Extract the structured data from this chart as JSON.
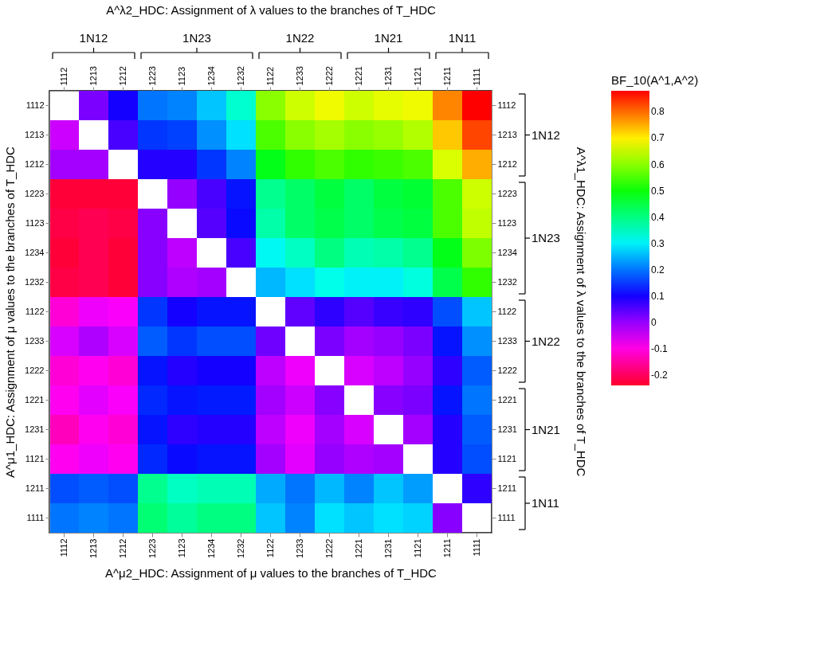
{
  "chart_data": {
    "type": "heatmap",
    "x2label": "A^λ2_HDC: Assignment of λ values to the branches of  T_HDC",
    "xlabel": "A^μ2_HDC: Assignment of μ values to the branches of  T_HDC",
    "ylabel": "A^μ1_HDC: Assignment of μ values to the branches of T_HDC",
    "clabel": "BF_10(A^1,A^2)",
    "categories": [
      "1112",
      "1213",
      "1212",
      "1223",
      "1123",
      "1234",
      "1232",
      "1122",
      "1233",
      "1222",
      "1221",
      "1231",
      "1121",
      "1211",
      "1111"
    ],
    "y_categories": [
      "1112",
      "1213",
      "1212",
      "1223",
      "1123",
      "1234",
      "1232",
      "1122",
      "1233",
      "1222",
      "1221",
      "1231",
      "1121",
      "1211",
      "1111"
    ],
    "y2_categories": [
      "1112",
      "1213",
      "1212",
      "1223",
      "1123",
      "1234",
      "1232",
      "1122",
      "1233",
      "1222",
      "1221",
      "1231",
      "1121",
      "1211",
      "1111"
    ],
    "cells": [
      [
        null,
        0.02,
        0.1,
        0.2,
        0.21,
        0.26,
        0.34,
        0.6,
        0.65,
        0.68,
        0.65,
        0.67,
        0.68,
        0.78,
        0.88
      ],
      [
        -0.04,
        null,
        0.06,
        0.15,
        0.16,
        0.22,
        0.28,
        0.55,
        0.6,
        0.62,
        0.6,
        0.61,
        0.63,
        0.73,
        0.83
      ],
      [
        -0.01,
        -0.01,
        null,
        0.09,
        0.09,
        0.15,
        0.21,
        0.48,
        0.53,
        0.55,
        0.53,
        0.54,
        0.55,
        0.66,
        0.75
      ],
      [
        -0.23,
        -0.23,
        -0.23,
        null,
        0.0,
        0.06,
        0.12,
        0.39,
        0.42,
        0.45,
        0.42,
        0.45,
        0.46,
        0.55,
        0.65
      ],
      [
        -0.22,
        -0.21,
        -0.22,
        0.01,
        null,
        0.05,
        0.11,
        0.37,
        0.42,
        0.44,
        0.42,
        0.44,
        0.45,
        0.55,
        0.64
      ],
      [
        -0.23,
        -0.21,
        -0.23,
        0.01,
        -0.03,
        null,
        0.06,
        0.31,
        0.35,
        0.4,
        0.36,
        0.37,
        0.39,
        0.48,
        0.59
      ],
      [
        -0.22,
        -0.21,
        -0.23,
        0.01,
        -0.02,
        -0.01,
        null,
        0.25,
        0.28,
        0.32,
        0.3,
        0.3,
        0.33,
        0.44,
        0.53
      ],
      [
        -0.11,
        -0.07,
        -0.08,
        0.15,
        0.1,
        0.12,
        0.12,
        null,
        0.04,
        0.08,
        0.05,
        0.07,
        0.08,
        0.17,
        0.26
      ],
      [
        -0.05,
        -0.02,
        -0.05,
        0.18,
        0.15,
        0.17,
        0.17,
        0.03,
        null,
        0.02,
        -0.01,
        0.0,
        0.02,
        0.12,
        0.22
      ],
      [
        -0.11,
        -0.09,
        -0.11,
        0.12,
        0.09,
        0.1,
        0.1,
        -0.03,
        -0.07,
        null,
        -0.05,
        -0.03,
        0.0,
        0.08,
        0.18
      ],
      [
        -0.09,
        -0.06,
        -0.08,
        0.14,
        0.12,
        0.13,
        0.13,
        -0.01,
        -0.04,
        0.01,
        null,
        0.01,
        0.02,
        0.12,
        0.2
      ],
      [
        -0.13,
        -0.09,
        -0.11,
        0.12,
        0.08,
        0.09,
        0.09,
        -0.03,
        -0.07,
        -0.01,
        -0.05,
        null,
        -0.01,
        0.09,
        0.18
      ],
      [
        -0.09,
        -0.07,
        -0.09,
        0.14,
        0.11,
        0.12,
        0.12,
        -0.01,
        -0.06,
        0.0,
        -0.02,
        -0.01,
        null,
        0.09,
        0.17
      ],
      [
        0.17,
        0.18,
        0.17,
        0.39,
        0.35,
        0.36,
        0.36,
        0.24,
        0.2,
        0.25,
        0.21,
        0.26,
        0.23,
        null,
        0.08
      ],
      [
        0.2,
        0.21,
        0.2,
        0.41,
        0.38,
        0.4,
        0.4,
        0.26,
        0.21,
        0.28,
        0.26,
        0.28,
        0.27,
        0.01,
        null
      ]
    ],
    "clim": [
      -0.24,
      0.88
    ],
    "cticks": [
      -0.2,
      -0.1,
      0,
      0.1,
      0.2,
      0.3,
      0.4,
      0.5,
      0.6,
      0.7,
      0.8
    ],
    "annotations": [
      "1N12",
      "1N23",
      "1N22",
      "1N21",
      "1N11",
      "1N12",
      "1N23",
      "1N22",
      "1N21",
      "1N11",
      "A^λ1_HDC: Assignment of λ values to the branches of T_HDC"
    ]
  }
}
